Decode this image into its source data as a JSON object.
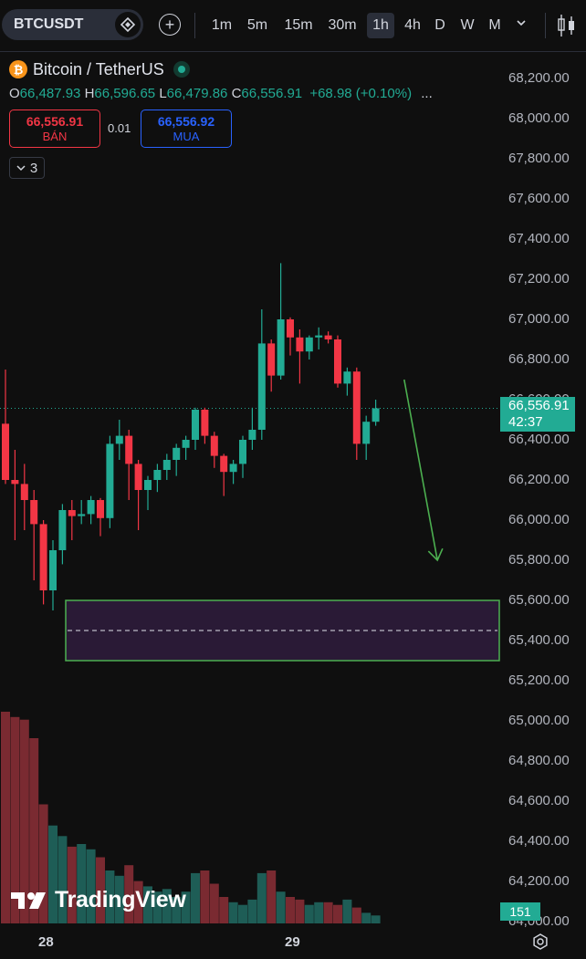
{
  "toolbar": {
    "symbol": "BTCUSDT",
    "timeframes": [
      "1m",
      "5m",
      "15m",
      "30m",
      "1h",
      "4h",
      "D",
      "W",
      "M"
    ],
    "active_timeframe": "1h"
  },
  "legend": {
    "title": "Bitcoin / TetherUS",
    "open_key": "O",
    "open": "66,487.93",
    "high_key": "H",
    "high": "66,596.65",
    "low_key": "L",
    "low": "66,479.86",
    "close_key": "C",
    "close": "66,556.91",
    "change": "+68.98 (+0.10%)",
    "more": "..."
  },
  "trade": {
    "sell_price": "66,556.91",
    "sell_label": "BÁN",
    "spread": "0.01",
    "buy_price": "66,556.92",
    "buy_label": "MUA"
  },
  "indicators_count": "3",
  "price_axis": [
    "68,200.00",
    "68,000.00",
    "67,800.00",
    "67,600.00",
    "67,400.00",
    "67,200.00",
    "67,000.00",
    "66,800.00",
    "66,600.00",
    "66,400.00",
    "66,200.00",
    "66,000.00",
    "65,800.00",
    "65,600.00",
    "65,400.00",
    "65,200.00",
    "65,000.00",
    "64,800.00",
    "64,600.00",
    "64,400.00",
    "64,200.00",
    "64,000.00"
  ],
  "current_price": {
    "price": "66,556.91",
    "countdown": "42:37"
  },
  "volume_tag": "151",
  "time_axis": [
    "28",
    "29"
  ],
  "watermark": "TradingView",
  "colors": {
    "up": "#22ab94",
    "down": "#f23645",
    "zone_fill": "#2a1a36",
    "zone_border": "#4caf50",
    "arrow": "#4caf50"
  },
  "chart_data": {
    "type": "candlestick",
    "y_range": [
      64000,
      68200
    ],
    "candles": [
      [
        66480,
        66750,
        66180,
        66200
      ],
      [
        66200,
        66350,
        65900,
        66180
      ],
      [
        66180,
        66280,
        65950,
        66100
      ],
      [
        66100,
        66150,
        65700,
        65980
      ],
      [
        65980,
        66000,
        65580,
        65650
      ],
      [
        65650,
        65900,
        65550,
        65850
      ],
      [
        65850,
        66080,
        65780,
        66050
      ],
      [
        66050,
        66100,
        65900,
        66020
      ],
      [
        66020,
        66100,
        65980,
        66030
      ],
      [
        66030,
        66120,
        65980,
        66100
      ],
      [
        66100,
        66110,
        65920,
        66010
      ],
      [
        66010,
        66420,
        65960,
        66380
      ],
      [
        66380,
        66500,
        66300,
        66420
      ],
      [
        66420,
        66450,
        66100,
        66280
      ],
      [
        66280,
        66300,
        65950,
        66150
      ],
      [
        66150,
        66220,
        66050,
        66200
      ],
      [
        66200,
        66280,
        66140,
        66250
      ],
      [
        66250,
        66330,
        66200,
        66300
      ],
      [
        66300,
        66380,
        66220,
        66360
      ],
      [
        66360,
        66420,
        66300,
        66400
      ],
      [
        66400,
        66560,
        66350,
        66550
      ],
      [
        66550,
        66560,
        66380,
        66420
      ],
      [
        66420,
        66440,
        66260,
        66320
      ],
      [
        66320,
        66330,
        66120,
        66240
      ],
      [
        66240,
        66300,
        66180,
        66280
      ],
      [
        66280,
        66420,
        66210,
        66400
      ],
      [
        66400,
        66560,
        66350,
        66450
      ],
      [
        66450,
        67050,
        66400,
        66880
      ],
      [
        66880,
        66900,
        66640,
        66720
      ],
      [
        66720,
        67280,
        66700,
        67000
      ],
      [
        67000,
        67010,
        66820,
        66910
      ],
      [
        66910,
        66950,
        66680,
        66840
      ],
      [
        66840,
        66920,
        66800,
        66910
      ],
      [
        66910,
        66960,
        66850,
        66920
      ],
      [
        66920,
        66940,
        66880,
        66900
      ],
      [
        66900,
        66920,
        66660,
        66680
      ],
      [
        66680,
        66760,
        66620,
        66740
      ],
      [
        66740,
        66760,
        66300,
        66380
      ],
      [
        66380,
        66520,
        66300,
        66490
      ],
      [
        66490,
        66600,
        66470,
        66557
      ]
    ],
    "volumes": [
      80,
      78,
      77,
      70,
      45,
      37,
      33,
      29,
      30,
      28,
      25,
      20,
      18,
      22,
      16,
      14,
      12,
      13,
      10,
      12,
      19,
      20,
      15,
      10,
      8,
      7,
      9,
      19,
      20,
      12,
      10,
      9,
      7,
      8,
      8,
      7,
      9,
      6,
      4,
      3
    ],
    "zone": {
      "top": 65600,
      "bottom": 65300,
      "mid": 65450
    },
    "arrow": {
      "from_index": 42,
      "from_price": 66700,
      "to_index": 45.5,
      "to_price": 65800
    }
  }
}
